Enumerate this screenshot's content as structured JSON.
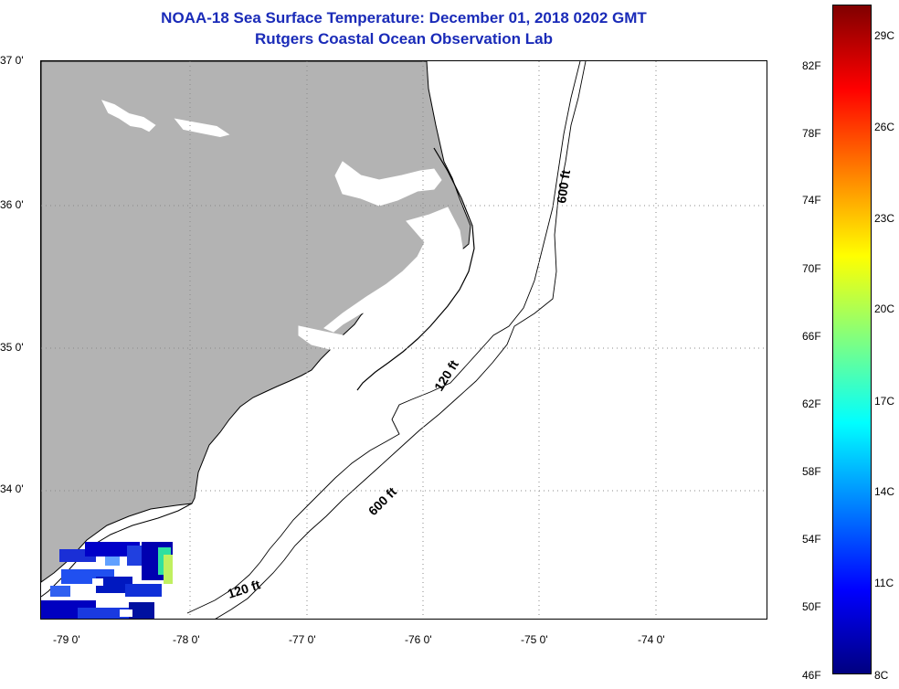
{
  "header": {
    "title": "NOAA-18 Sea Surface Temperature:  December 01, 2018 0202 GMT",
    "subtitle": "Rutgers Coastal Ocean Observation Lab"
  },
  "map": {
    "latitude_labels": [
      "37 0'",
      "36 0'",
      "35 0'",
      "34 0'"
    ],
    "longitude_labels": [
      "-79 0'",
      "-78 0'",
      "-77 0'",
      "-76 0'",
      "-75 0'",
      "-74 0'"
    ],
    "contour_labels": [
      "600 ft",
      "120 ft",
      "600 ft",
      "120 ft"
    ],
    "colors": {
      "land": "#b3b3b3",
      "water": "#ffffff",
      "coastline": "#000000"
    }
  },
  "colorbar": {
    "fahrenheit_labels": [
      "82F",
      "78F",
      "74F",
      "70F",
      "66F",
      "62F",
      "58F",
      "54F",
      "50F",
      "46F"
    ],
    "celsius_labels": [
      "29C",
      "26C",
      "23C",
      "20C",
      "17C",
      "14C",
      "11C",
      "8C"
    ],
    "colormap": [
      "#800000",
      "#ff0000",
      "#ff8000",
      "#ffff00",
      "#80ff80",
      "#00ffff",
      "#0080ff",
      "#0000ff",
      "#000080"
    ]
  }
}
